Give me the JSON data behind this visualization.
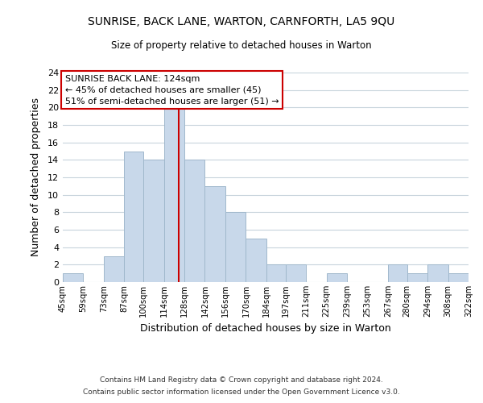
{
  "title": "SUNRISE, BACK LANE, WARTON, CARNFORTH, LA5 9QU",
  "subtitle": "Size of property relative to detached houses in Warton",
  "xlabel": "Distribution of detached houses by size in Warton",
  "ylabel": "Number of detached properties",
  "bar_color": "#c8d8ea",
  "bar_edgecolor": "#a0b8cc",
  "reference_line_x": 124,
  "reference_line_color": "#cc0000",
  "bin_edges": [
    45,
    59,
    73,
    87,
    100,
    114,
    128,
    142,
    156,
    170,
    184,
    197,
    211,
    225,
    239,
    253,
    267,
    280,
    294,
    308,
    322
  ],
  "bin_labels": [
    "45sqm",
    "59sqm",
    "73sqm",
    "87sqm",
    "100sqm",
    "114sqm",
    "128sqm",
    "142sqm",
    "156sqm",
    "170sqm",
    "184sqm",
    "197sqm",
    "211sqm",
    "225sqm",
    "239sqm",
    "253sqm",
    "267sqm",
    "280sqm",
    "294sqm",
    "308sqm",
    "322sqm"
  ],
  "counts": [
    1,
    0,
    3,
    15,
    14,
    20,
    14,
    11,
    8,
    5,
    2,
    2,
    0,
    1,
    0,
    0,
    2,
    1,
    2,
    1
  ],
  "ylim": [
    0,
    24
  ],
  "yticks": [
    0,
    2,
    4,
    6,
    8,
    10,
    12,
    14,
    16,
    18,
    20,
    22,
    24
  ],
  "annotation_title": "SUNRISE BACK LANE: 124sqm",
  "annotation_line1": "← 45% of detached houses are smaller (45)",
  "annotation_line2": "51% of semi-detached houses are larger (51) →",
  "annotation_box_color": "#ffffff",
  "annotation_box_edgecolor": "#cc0000",
  "footer1": "Contains HM Land Registry data © Crown copyright and database right 2024.",
  "footer2": "Contains public sector information licensed under the Open Government Licence v3.0.",
  "background_color": "#ffffff",
  "grid_color": "#c8d4dc"
}
